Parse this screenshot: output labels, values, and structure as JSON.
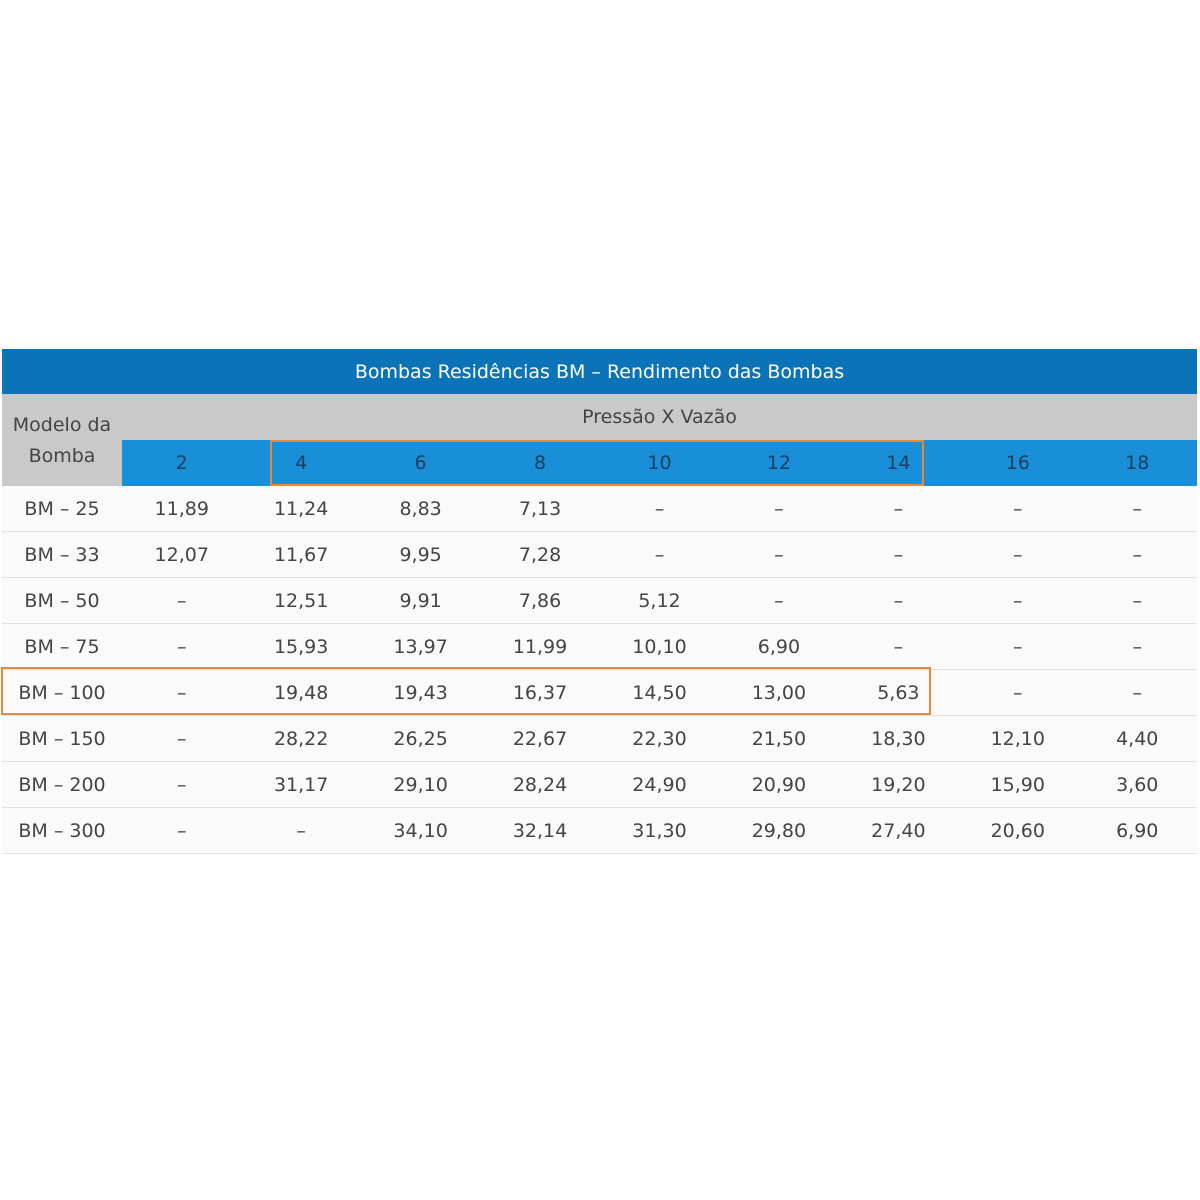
{
  "table": {
    "title": "Bombas Residências BM – Rendimento das Bombas",
    "corner_header": "Modelo da Bomba",
    "group_header": "Pressão X Vazão",
    "columns": [
      "2",
      "4",
      "6",
      "8",
      "10",
      "12",
      "14",
      "16",
      "18"
    ],
    "rows": [
      [
        "BM – 25",
        "11,89",
        "11,24",
        "8,83",
        "7,13",
        "–",
        "–",
        "–",
        "–",
        "–"
      ],
      [
        "BM – 33",
        "12,07",
        "11,67",
        "9,95",
        "7,28",
        "–",
        "–",
        "–",
        "–",
        "–"
      ],
      [
        "BM – 50",
        "–",
        "12,51",
        "9,91",
        "7,86",
        "5,12",
        "–",
        "–",
        "–",
        "–"
      ],
      [
        "BM – 75",
        "–",
        "15,93",
        "13,97",
        "11,99",
        "10,10",
        "6,90",
        "–",
        "–",
        "–"
      ],
      [
        "BM – 100",
        "–",
        "19,48",
        "19,43",
        "16,37",
        "14,50",
        "13,00",
        "5,63",
        "–",
        "–"
      ],
      [
        "BM – 150",
        "–",
        "28,22",
        "26,25",
        "22,67",
        "22,30",
        "21,50",
        "18,30",
        "12,10",
        "4,40"
      ],
      [
        "BM – 200",
        "–",
        "31,17",
        "29,10",
        "28,24",
        "24,90",
        "20,90",
        "19,20",
        "15,90",
        "3,60"
      ],
      [
        "BM – 300",
        "–",
        "–",
        "34,10",
        "32,14",
        "31,30",
        "29,80",
        "27,40",
        "20,60",
        "6,90"
      ]
    ]
  }
}
